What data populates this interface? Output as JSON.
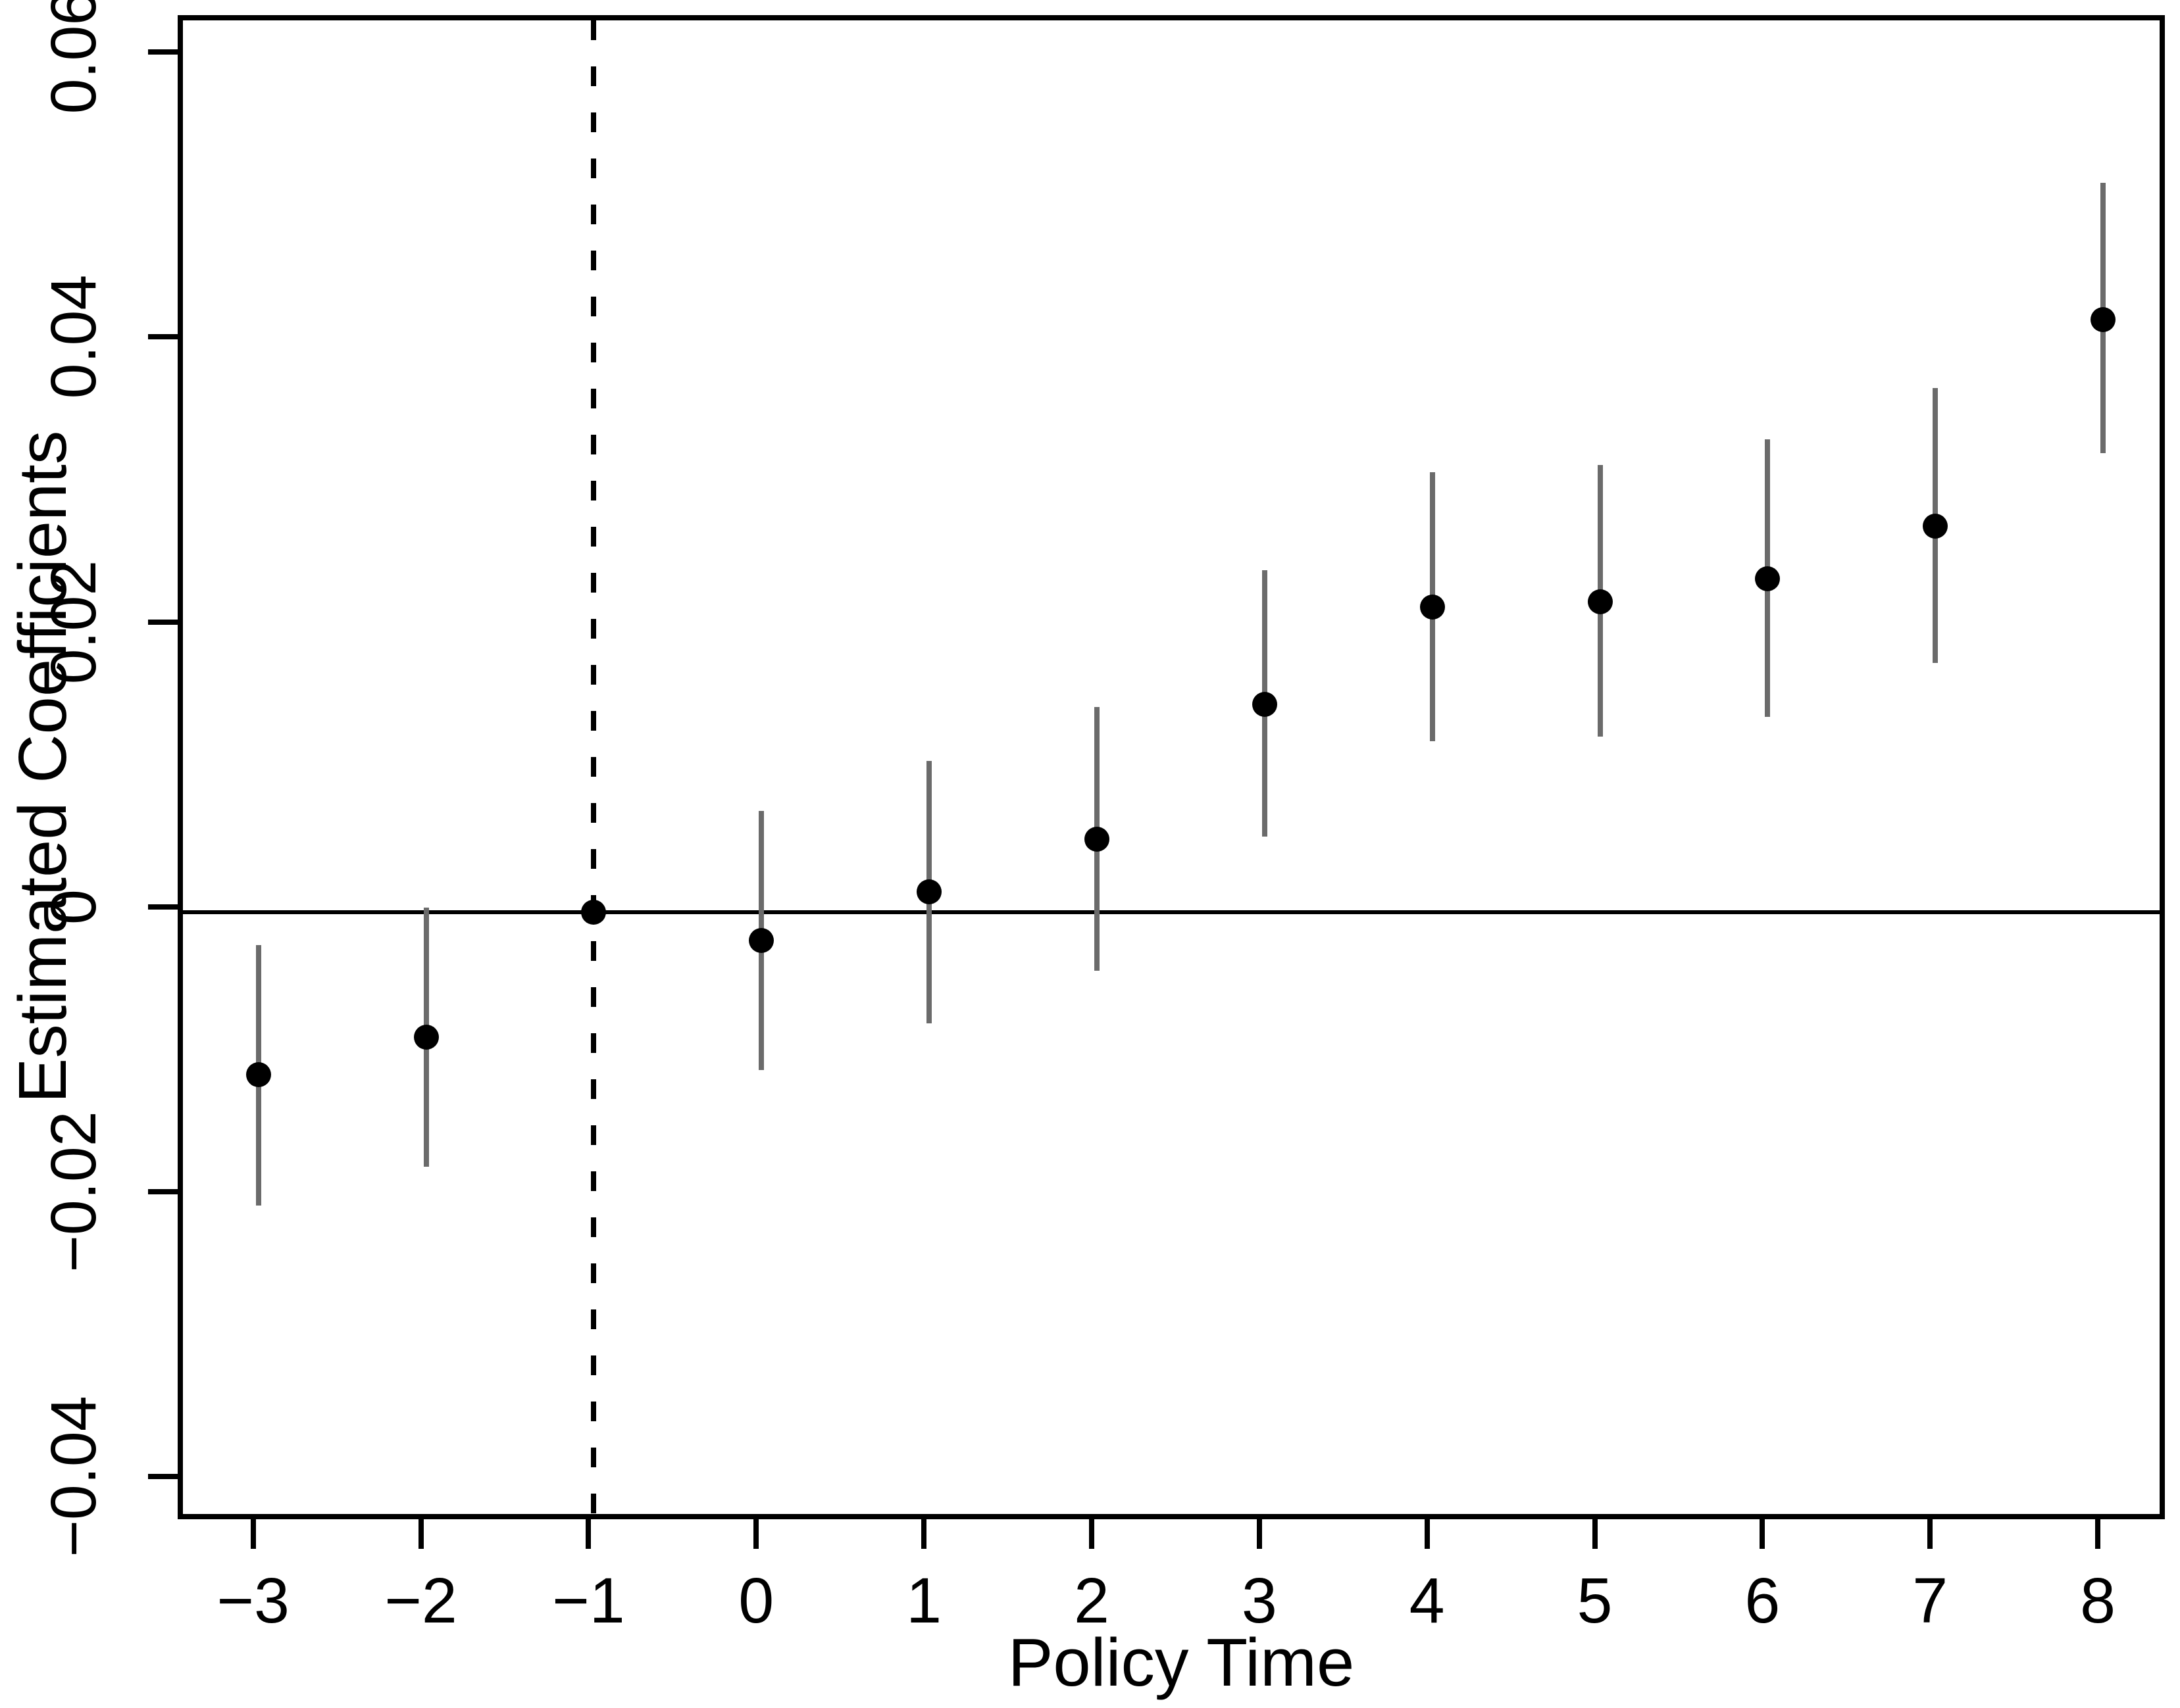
{
  "chart_data": {
    "type": "scatter",
    "subtype": "event-study-coefficient-plot",
    "title": "",
    "xlabel": "Policy Time",
    "ylabel": "Estimated Coefficients",
    "x": [
      -3,
      -2,
      -1,
      0,
      1,
      2,
      3,
      4,
      5,
      6,
      7,
      8
    ],
    "series": [
      {
        "name": "Estimated Coefficients",
        "estimates": [
          -0.0114,
          -0.0088,
          0.0,
          -0.002,
          0.0014,
          0.0051,
          0.0146,
          0.0214,
          0.0218,
          0.0234,
          0.0271,
          0.0416
        ],
        "ci_low": [
          -0.0206,
          -0.0179,
          null,
          -0.0111,
          -0.0078,
          -0.0041,
          0.0053,
          0.012,
          0.0123,
          0.0137,
          0.0175,
          0.0322
        ],
        "ci_high": [
          -0.0023,
          0.0003,
          null,
          0.0071,
          0.0106,
          0.0144,
          0.024,
          0.0309,
          0.0314,
          0.0332,
          0.0368,
          0.0512
        ]
      }
    ],
    "reference_period": -1,
    "hline_y": 0,
    "vline_x": -1,
    "vline_style": "dashed",
    "x_tick_labels": [
      "−3",
      "−2",
      "−1",
      "0",
      "1",
      "2",
      "3",
      "4",
      "5",
      "6",
      "7",
      "8"
    ],
    "y_tick_values": [
      0.06,
      0.04,
      0.02,
      0,
      -0.02,
      -0.04
    ],
    "y_tick_labels": [
      "0.06",
      "0.04",
      "0.02",
      "0",
      "−0.02",
      "−0.04"
    ],
    "xlim": [
      -3.45,
      8.4
    ],
    "ylim": [
      -0.043,
      0.0626
    ],
    "grid": false,
    "legend": false,
    "colors": {
      "point": "#000000",
      "error_bar": "#6b6b6b",
      "axis": "#000000",
      "background": "#ffffff"
    }
  }
}
